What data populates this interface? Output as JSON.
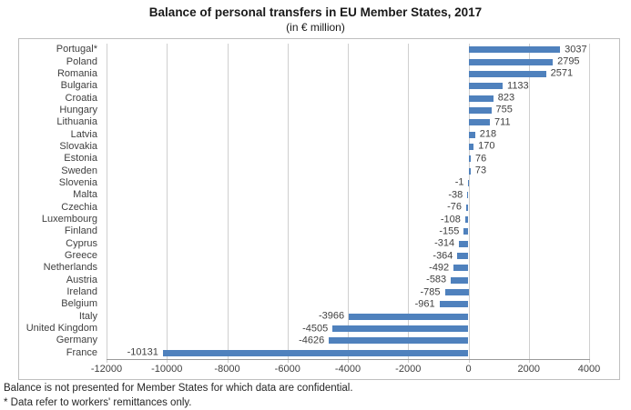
{
  "title": "Balance of personal transfers in EU Member States, 2017",
  "subtitle": "(in € million)",
  "footnotes": [
    "Balance is not presented for Member States for which data are confidential.",
    "* Data refer to workers' remittances only."
  ],
  "chart_data": {
    "type": "bar",
    "orientation": "horizontal",
    "title": "Balance of personal transfers in EU Member States, 2017",
    "subtitle": "(in € million)",
    "categories": [
      "Portugal*",
      "Poland",
      "Romania",
      "Bulgaria",
      "Croatia",
      "Hungary",
      "Lithuania",
      "Latvia",
      "Slovakia",
      "Estonia",
      "Sweden",
      "Slovenia",
      "Malta",
      "Czechia",
      "Luxembourg",
      "Finland",
      "Cyprus",
      "Greece",
      "Netherlands",
      "Austria",
      "Ireland",
      "Belgium",
      "Italy",
      "United Kingdom",
      "Germany",
      "France"
    ],
    "values": [
      3037,
      2795,
      2571,
      1133,
      823,
      755,
      711,
      218,
      170,
      76,
      73,
      -1,
      -38,
      -76,
      -108,
      -155,
      -314,
      -364,
      -492,
      -583,
      -785,
      -961,
      -3966,
      -4505,
      -4626,
      -10131
    ],
    "xlabel": "",
    "ylabel": "",
    "xlim": [
      -12000,
      4000
    ],
    "xticks": [
      -12000,
      -10000,
      -8000,
      -6000,
      -4000,
      -2000,
      0,
      2000,
      4000
    ],
    "grid": true,
    "legend": false,
    "value_labels": true,
    "bar_color": "#4f81bd",
    "gridline_color": "#cfcfcf",
    "border_color": "#bfbfbf"
  }
}
